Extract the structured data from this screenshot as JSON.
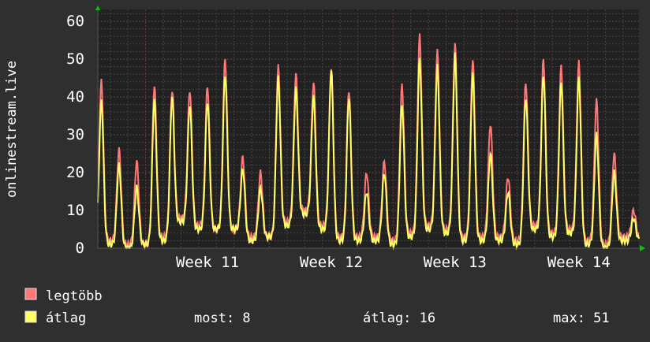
{
  "chart_data": {
    "type": "line",
    "ylabel": "onlinestream.live",
    "ylim": [
      0,
      60
    ],
    "yticks": [
      "0",
      "10",
      "20",
      "30",
      "40",
      "50",
      "60"
    ],
    "xlim_days": [
      -2.7,
      27.9
    ],
    "xticks": [
      {
        "label": "Week 11",
        "day": 3.5
      },
      {
        "label": "Week 12",
        "day": 10.5
      },
      {
        "label": "Week 13",
        "day": 17.5
      },
      {
        "label": "Week 14",
        "day": 24.5
      }
    ],
    "grid": true,
    "peak_days": [
      -2.5,
      -1.5,
      -0.5,
      0.5,
      1.5,
      2.5,
      3.5,
      4.5,
      5.5,
      6.5,
      7.5,
      8.5,
      9.5,
      10.5,
      11.5,
      12.5,
      13.5,
      14.5,
      15.5,
      16.5,
      17.5,
      18.5,
      19.5,
      20.5,
      21.5,
      22.5,
      23.5,
      24.5,
      25.5,
      26.5,
      27.6
    ],
    "series": [
      {
        "name": "legtöbb",
        "color": "#ff7777",
        "daily_peaks": [
          44,
          26,
          23,
          43,
          42,
          42,
          43,
          50,
          24,
          20,
          48,
          46,
          44,
          48,
          42,
          20,
          23,
          43,
          56,
          52,
          54,
          50,
          33,
          19,
          44,
          50,
          48,
          49,
          39,
          25,
          10
        ],
        "daily_troughs": [
          3,
          2,
          1,
          1,
          3,
          8,
          6,
          5,
          5,
          3,
          3,
          7,
          10,
          6,
          3,
          3,
          3,
          2,
          4,
          6,
          5,
          3,
          3,
          3,
          2,
          6,
          4,
          5,
          2,
          1,
          3
        ]
      },
      {
        "name": "átlag",
        "color": "#ffff66",
        "daily_peaks": [
          39,
          22,
          16,
          39,
          40,
          38,
          39,
          46,
          21,
          16,
          45,
          42,
          40,
          47,
          40,
          15,
          20,
          38,
          50,
          48,
          51,
          46,
          25,
          15,
          40,
          46,
          44,
          45,
          30,
          20,
          8
        ],
        "daily_troughs": [
          2,
          1,
          0,
          1,
          2,
          7,
          5,
          5,
          5,
          2,
          3,
          6,
          9,
          5,
          2,
          2,
          2,
          1,
          3,
          5,
          4,
          2,
          2,
          2,
          1,
          5,
          3,
          4,
          1,
          0,
          2
        ]
      }
    ],
    "legend": {
      "items": [
        {
          "label": "legtöbb",
          "color": "#ff7777"
        },
        {
          "label": "átlag",
          "color": "#ffff66"
        }
      ],
      "stats": {
        "now": "most: 8",
        "avg": "átlag: 16",
        "max": "max: 51"
      },
      "placement": "bottom"
    }
  }
}
